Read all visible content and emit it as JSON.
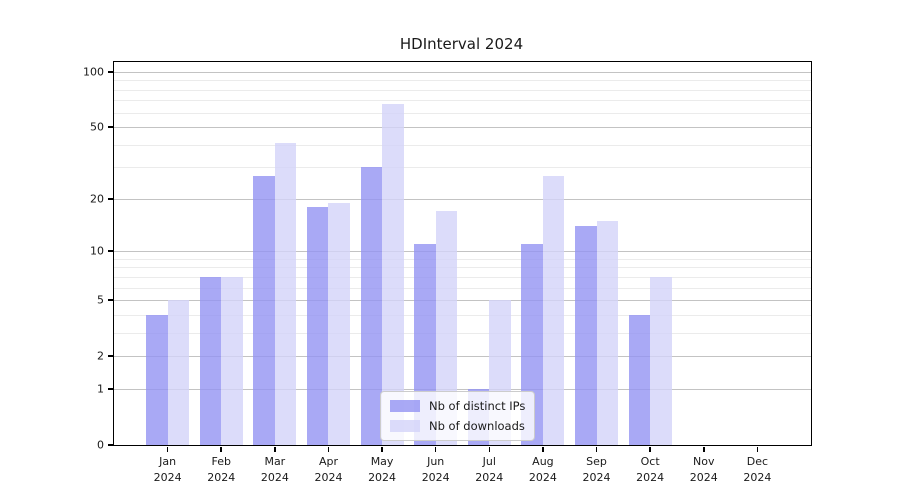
{
  "figure": {
    "background": "#ffffff",
    "axis_color": "#000000",
    "major_grid_color": "#c3c3c3",
    "minor_grid_color": "#ebebeb"
  },
  "chart_data": {
    "type": "bar",
    "title": "HDInterval 2024",
    "xlabel": "",
    "ylabel": "",
    "categories": [
      "Jan",
      "Feb",
      "Mar",
      "Apr",
      "May",
      "Jun",
      "Jul",
      "Aug",
      "Sep",
      "Oct",
      "Nov",
      "Dec"
    ],
    "year_label": "2024",
    "series": [
      {
        "name": "Nb of distinct IPs",
        "color": "#9494f3",
        "values": [
          4,
          7,
          27,
          18,
          30,
          11,
          1,
          11,
          14,
          4,
          0,
          0
        ]
      },
      {
        "name": "Nb of downloads",
        "color": "#d3d3f9",
        "values": [
          5,
          7,
          41,
          19,
          67,
          17,
          5,
          27,
          15,
          7,
          0,
          0
        ]
      }
    ],
    "yticks": [
      0,
      1,
      2,
      5,
      10,
      20,
      50,
      100
    ],
    "minor_gridlines": [
      3,
      4,
      6,
      7,
      8,
      9,
      30,
      40,
      60,
      70,
      80,
      90
    ],
    "ylim": [
      0,
      113
    ],
    "scale": "log10(1+x)",
    "grid": true,
    "legend_position": "lower center"
  }
}
